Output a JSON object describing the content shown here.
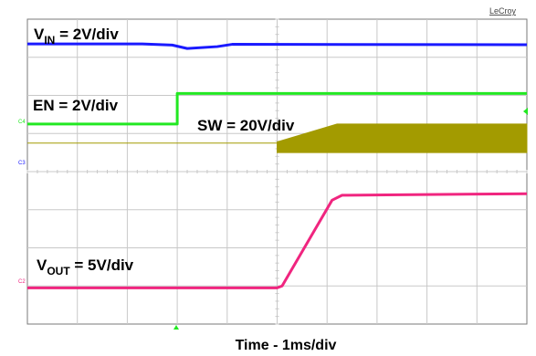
{
  "brand": "LeCroy",
  "labels": {
    "vin_main": "V",
    "vin_sub": "IN",
    "vin_rest": " = 2V/div",
    "en": "EN = 2V/div",
    "sw": "SW = 20V/div",
    "vout_main": "V",
    "vout_sub": "OUT",
    "vout_rest": " = 5V/div",
    "xlabel": "Time - 1ms/div"
  },
  "channel_markers": [
    "C4",
    "C3",
    "C2"
  ],
  "colors": {
    "vin": "#1a1aff",
    "en": "#22e822",
    "sw": "#a39b00",
    "vout": "#f0257f",
    "grid": "#c8c8c8",
    "frame": "#7a7a7a"
  },
  "chart_data": {
    "type": "line",
    "grid": true,
    "x_unit": "ms",
    "x_divisions": 10,
    "y_divisions": 8,
    "xlim": [
      0,
      10
    ],
    "xlabel": "Time - 1ms/div",
    "series": [
      {
        "name": "VIN = 2V/div",
        "x": [
          0,
          2.3,
          2.9,
          3.2,
          3.8,
          4.1,
          10
        ],
        "y_div": [
          7.35,
          7.35,
          7.32,
          7.23,
          7.28,
          7.34,
          7.33
        ]
      },
      {
        "name": "EN = 2V/div",
        "x": [
          0,
          3.0,
          3.0,
          10
        ],
        "y_div": [
          5.25,
          5.25,
          6.05,
          6.05
        ]
      },
      {
        "name": "SW = 20V/div",
        "x": [
          0,
          5.0,
          5.0,
          6.2,
          10
        ],
        "y_div_low": [
          4.75,
          4.75,
          4.5,
          4.5,
          4.5
        ],
        "y_div_high": [
          4.75,
          4.75,
          4.78,
          5.25,
          5.25
        ]
      },
      {
        "name": "VOUT = 5V/div",
        "x": [
          0,
          5.0,
          5.1,
          6.1,
          6.3,
          10
        ],
        "y_div": [
          0.95,
          0.95,
          1.0,
          3.25,
          3.38,
          3.42
        ]
      }
    ]
  }
}
